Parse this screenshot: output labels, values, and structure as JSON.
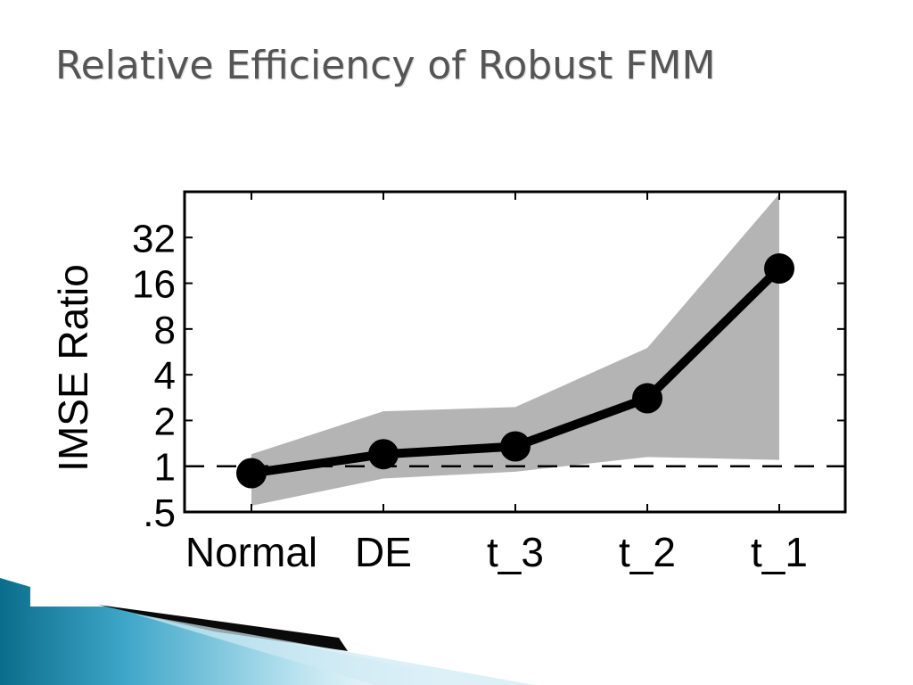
{
  "slide": {
    "title": "Relative Efficiency of Robust FMM"
  },
  "colors": {
    "band": "#b4b4b4",
    "line": "#000000",
    "deco_dark": "#0b6d8c",
    "deco_light": "#7fc4dc"
  },
  "chart_data": {
    "type": "line",
    "ylabel": "IMSE Ratio",
    "xlabel": "",
    "y_scale": "log2",
    "ylim": [
      0.5,
      64
    ],
    "categories": [
      "Normal",
      "DE",
      "t_3",
      "t_2",
      "t_1"
    ],
    "y_ticks": [
      0.5,
      1,
      2,
      4,
      8,
      16,
      32
    ],
    "y_tick_labels": [
      ".5",
      "1",
      "2",
      "4",
      "8",
      "16",
      "32"
    ],
    "series": [
      {
        "values": [
          0.9,
          1.2,
          1.35,
          2.8,
          20
        ]
      }
    ],
    "band": {
      "lower": [
        0.55,
        0.83,
        0.92,
        1.15,
        1.1
      ],
      "upper": [
        1.2,
        2.3,
        2.45,
        6.0,
        62
      ]
    },
    "reference_line": {
      "value": 1,
      "style": "dashed"
    },
    "grid": false,
    "legend": "none"
  }
}
